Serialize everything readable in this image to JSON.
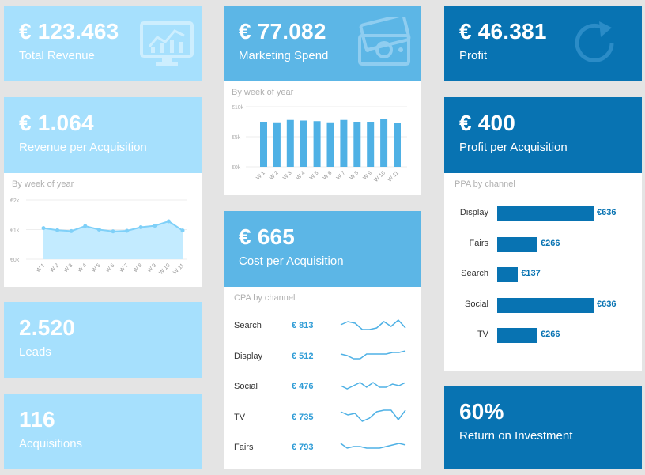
{
  "total_revenue": {
    "value": "€ 123.463",
    "label": "Total Revenue",
    "icon": "monitor-chart-icon"
  },
  "marketing_spend": {
    "value": "€ 77.082",
    "label": "Marketing Spend",
    "icon": "money-icon"
  },
  "profit": {
    "value": "€ 46.381",
    "label": "Profit",
    "icon": "refresh-icon"
  },
  "rev_per_acq": {
    "value": "€ 1.064",
    "label": "Revenue per Acquisition",
    "subtitle": "By week of year",
    "chart_data": {
      "type": "area",
      "categories": [
        "W 1",
        "W 2",
        "W 3",
        "W 4",
        "W 5",
        "W 6",
        "W 7",
        "W 8",
        "W 9",
        "W 10",
        "W 11"
      ],
      "values": [
        1050,
        980,
        950,
        1120,
        1000,
        940,
        960,
        1080,
        1130,
        1280,
        970
      ],
      "ytick_labels": [
        "€2k",
        "€1k",
        "€0k"
      ],
      "yticks": [
        2000,
        1000,
        0
      ],
      "ylim": [
        0,
        2000
      ]
    }
  },
  "mkt_by_week": {
    "subtitle": "By week of year",
    "chart_data": {
      "type": "bar",
      "categories": [
        "W 1",
        "W 2",
        "W 3",
        "W 4",
        "W 5",
        "W 6",
        "W 7",
        "W 8",
        "W 9",
        "W 10",
        "W 11"
      ],
      "values": [
        7500,
        7400,
        7800,
        7700,
        7600,
        7400,
        7800,
        7500,
        7500,
        7900,
        7300
      ],
      "ytick_labels": [
        "€10k",
        "€5k",
        "€0k"
      ],
      "yticks": [
        10000,
        5000,
        0
      ],
      "ylim": [
        0,
        10000
      ]
    }
  },
  "profit_per_acq": {
    "value": "€ 400",
    "label": "Profit per Acquisition",
    "subtitle": "PPA by channel",
    "chart_data": {
      "type": "bar",
      "orientation": "horizontal",
      "categories": [
        "Display",
        "Fairs",
        "Search",
        "Social",
        "TV"
      ],
      "values": [
        636,
        266,
        137,
        636,
        266
      ],
      "value_labels": [
        "€636",
        "€266",
        "€137",
        "€636",
        "€266"
      ],
      "xlim": [
        0,
        636
      ]
    }
  },
  "leads": {
    "value": "2.520",
    "label": "Leads"
  },
  "acquisitions": {
    "value": "116",
    "label": "Acquisitions"
  },
  "cpa": {
    "value": "€ 665",
    "label": "Cost per Acquisition",
    "subtitle": "CPA by channel",
    "channels": [
      {
        "name": "Search",
        "value": "€ 813",
        "trend": [
          5,
          7,
          6,
          2,
          2,
          3,
          7,
          4,
          8,
          3
        ]
      },
      {
        "name": "Display",
        "value": "€ 512",
        "trend": [
          6,
          5,
          3,
          3,
          6,
          6,
          6,
          6,
          7,
          7,
          8
        ]
      },
      {
        "name": "Social",
        "value": "€ 476",
        "trend": [
          5,
          3,
          5,
          7,
          4,
          7,
          4,
          4,
          6,
          5,
          7
        ]
      },
      {
        "name": "TV",
        "value": "€ 735",
        "trend": [
          8,
          6,
          7,
          2,
          4,
          8,
          9,
          9,
          3,
          9
        ]
      },
      {
        "name": "Fairs",
        "value": "€ 793",
        "trend": [
          7,
          4,
          5,
          5,
          4,
          4,
          4,
          5,
          6,
          7,
          6
        ]
      }
    ]
  },
  "roi": {
    "value": "60%",
    "label": "Return on Investment"
  }
}
